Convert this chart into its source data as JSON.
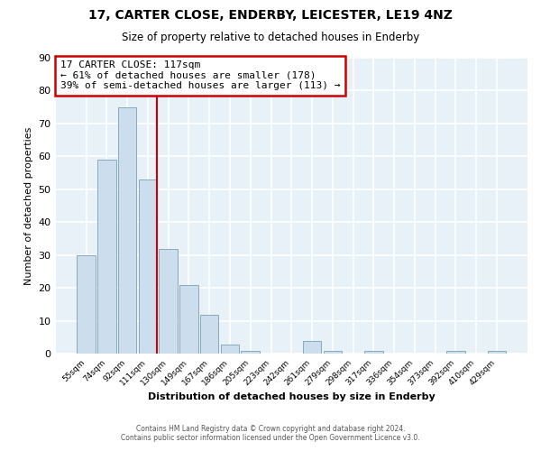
{
  "title": "17, CARTER CLOSE, ENDERBY, LEICESTER, LE19 4NZ",
  "subtitle": "Size of property relative to detached houses in Enderby",
  "xlabel": "Distribution of detached houses by size in Enderby",
  "ylabel": "Number of detached properties",
  "bar_color": "#ccdded",
  "bar_edge_color": "#88aabb",
  "bin_labels": [
    "55sqm",
    "74sqm",
    "92sqm",
    "111sqm",
    "130sqm",
    "149sqm",
    "167sqm",
    "186sqm",
    "205sqm",
    "223sqm",
    "242sqm",
    "261sqm",
    "279sqm",
    "298sqm",
    "317sqm",
    "336sqm",
    "354sqm",
    "373sqm",
    "392sqm",
    "410sqm",
    "429sqm"
  ],
  "bin_values": [
    30,
    59,
    75,
    53,
    32,
    21,
    12,
    3,
    1,
    0,
    0,
    4,
    1,
    0,
    1,
    0,
    0,
    0,
    1,
    0,
    1
  ],
  "ylim": [
    0,
    90
  ],
  "yticks": [
    0,
    10,
    20,
    30,
    40,
    50,
    60,
    70,
    80,
    90
  ],
  "vline_x_index": 3,
  "vline_color": "#cc0000",
  "annotation_title": "17 CARTER CLOSE: 117sqm",
  "annotation_line1": "← 61% of detached houses are smaller (178)",
  "annotation_line2": "39% of semi-detached houses are larger (113) →",
  "annotation_box_color": "#ffffff",
  "annotation_box_edgecolor": "#cc0000",
  "background_color": "#ffffff",
  "plot_bg_color": "#e8f0f8",
  "grid_color": "#ffffff",
  "footer1": "Contains HM Land Registry data © Crown copyright and database right 2024.",
  "footer2": "Contains public sector information licensed under the Open Government Licence v3.0."
}
